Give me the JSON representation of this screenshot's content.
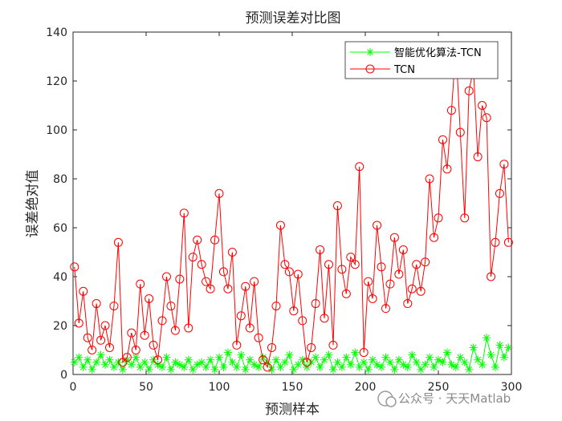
{
  "chart_data": {
    "type": "line",
    "title": "预测误差对比图",
    "xlabel": "预测样本",
    "ylabel": "误差绝对值",
    "xlim": [
      0,
      300
    ],
    "ylim": [
      0,
      140
    ],
    "xticks": [
      "0",
      "50",
      "100",
      "150",
      "200",
      "250",
      "300"
    ],
    "yticks": [
      "0",
      "20",
      "40",
      "60",
      "80",
      "100",
      "120",
      "140"
    ],
    "legend_position": "top-right",
    "grid": false,
    "series": [
      {
        "name": "智能优化算法-TCN",
        "color": "#00ff00",
        "marker": "asterisk",
        "x": [
          1,
          4,
          7,
          10,
          13,
          16,
          19,
          22,
          25,
          28,
          31,
          34,
          37,
          40,
          43,
          46,
          49,
          52,
          55,
          58,
          61,
          64,
          67,
          70,
          73,
          76,
          79,
          82,
          85,
          88,
          91,
          94,
          97,
          100,
          103,
          106,
          109,
          112,
          115,
          118,
          121,
          124,
          127,
          130,
          133,
          136,
          139,
          142,
          145,
          148,
          151,
          154,
          157,
          160,
          163,
          166,
          169,
          172,
          175,
          178,
          181,
          184,
          187,
          190,
          193,
          196,
          199,
          202,
          205,
          208,
          211,
          214,
          217,
          220,
          223,
          226,
          229,
          232,
          235,
          238,
          241,
          244,
          247,
          250,
          253,
          256,
          259,
          262,
          265,
          268,
          271,
          274,
          277,
          280,
          283,
          286,
          289,
          292,
          295,
          298
        ],
        "values": [
          5,
          7,
          3,
          6,
          2,
          5,
          8,
          4,
          6,
          3,
          5,
          2,
          6,
          4,
          7,
          3,
          5,
          2,
          6,
          4,
          3,
          7,
          2,
          5,
          4,
          3,
          6,
          2,
          4,
          5,
          3,
          6,
          2,
          7,
          3,
          9,
          5,
          3,
          8,
          2,
          6,
          4,
          3,
          7,
          5,
          2,
          6,
          3,
          5,
          8,
          2,
          4,
          6,
          3,
          5,
          7,
          3,
          6,
          8,
          2,
          5,
          3,
          7,
          4,
          9,
          3,
          5,
          2,
          6,
          4,
          3,
          7,
          5,
          2,
          6,
          4,
          3,
          8,
          5,
          2,
          4,
          7,
          3,
          6,
          5,
          9,
          4,
          3,
          7,
          5,
          2,
          11,
          6,
          4,
          15,
          8,
          3,
          12,
          7,
          11
        ]
      },
      {
        "name": "TCN",
        "color": "#ff0000",
        "marker": "circle",
        "x": [
          1,
          4,
          7,
          10,
          13,
          16,
          19,
          22,
          25,
          28,
          31,
          34,
          37,
          40,
          43,
          46,
          49,
          52,
          55,
          58,
          61,
          64,
          67,
          70,
          73,
          76,
          79,
          82,
          85,
          88,
          91,
          94,
          97,
          100,
          103,
          106,
          109,
          112,
          115,
          118,
          121,
          124,
          127,
          130,
          133,
          136,
          139,
          142,
          145,
          148,
          151,
          154,
          157,
          160,
          163,
          166,
          169,
          172,
          175,
          178,
          181,
          184,
          187,
          190,
          193,
          196,
          199,
          202,
          205,
          208,
          211,
          214,
          217,
          220,
          223,
          226,
          229,
          232,
          235,
          238,
          241,
          244,
          247,
          250,
          253,
          256,
          259,
          262,
          265,
          268,
          271,
          274,
          277,
          280,
          283,
          286,
          289,
          292,
          295,
          298
        ],
        "values": [
          44,
          21,
          34,
          15,
          10,
          29,
          14,
          20,
          11,
          28,
          54,
          5,
          7,
          17,
          10,
          37,
          16,
          31,
          12,
          6,
          22,
          40,
          28,
          18,
          39,
          66,
          19,
          48,
          55,
          45,
          38,
          35,
          55,
          74,
          42,
          35,
          50,
          12,
          24,
          36,
          19,
          38,
          15,
          6,
          3,
          11,
          28,
          61,
          45,
          42,
          26,
          41,
          22,
          5,
          11,
          29,
          51,
          23,
          45,
          12,
          69,
          43,
          33,
          48,
          45,
          85,
          9,
          38,
          31,
          61,
          44,
          27,
          37,
          56,
          41,
          51,
          29,
          35,
          45,
          34,
          46,
          80,
          56,
          64,
          96,
          84,
          108,
          134,
          99,
          64,
          116,
          125,
          89,
          110,
          105,
          40,
          54,
          74,
          86,
          54
        ]
      }
    ]
  },
  "watermark": "公众号 · 天天Matlab"
}
